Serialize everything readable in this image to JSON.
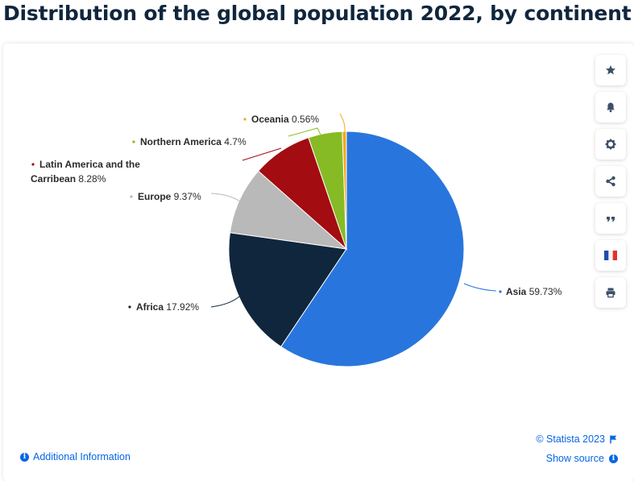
{
  "page": {
    "title": "Distribution of the global population 2022, by continent"
  },
  "chart_data": {
    "type": "pie",
    "title": "",
    "slices": [
      {
        "label": "Asia",
        "value": 59.73,
        "display": "59.73%",
        "color": "#2876dd"
      },
      {
        "label": "Africa",
        "value": 17.92,
        "display": "17.92%",
        "color": "#10263d"
      },
      {
        "label": "Europe",
        "value": 9.37,
        "display": "9.37%",
        "color": "#b9b9b9"
      },
      {
        "label": "Latin America and the Carribean",
        "label_lines": [
          "Latin America and the",
          "Carribean"
        ],
        "value": 8.28,
        "display": "8.28%",
        "color": "#a30c10"
      },
      {
        "label": "Northern America",
        "value": 4.7,
        "display": "4.7%",
        "color": "#86bb25"
      },
      {
        "label": "Oceania",
        "value": 0.56,
        "display": "0.56%",
        "color": "#f2a81d"
      }
    ],
    "start_angle_deg": 0,
    "direction": "clockwise"
  },
  "toolbar": {
    "buttons": [
      {
        "name": "favorite-button",
        "icon": "star-icon"
      },
      {
        "name": "notification-button",
        "icon": "bell-icon"
      },
      {
        "name": "settings-button",
        "icon": "gear-icon"
      },
      {
        "name": "share-button",
        "icon": "share-icon"
      },
      {
        "name": "cite-button",
        "icon": "quote-icon"
      },
      {
        "name": "language-button",
        "icon": "french-flag-icon"
      },
      {
        "name": "print-button",
        "icon": "printer-icon"
      }
    ]
  },
  "footer": {
    "additional_info": "Additional Information",
    "copyright": "© Statista 2023",
    "show_source": "Show source"
  },
  "colors": {
    "accent": "#0666e5",
    "title": "#10263d",
    "icon": "#3b5069"
  }
}
